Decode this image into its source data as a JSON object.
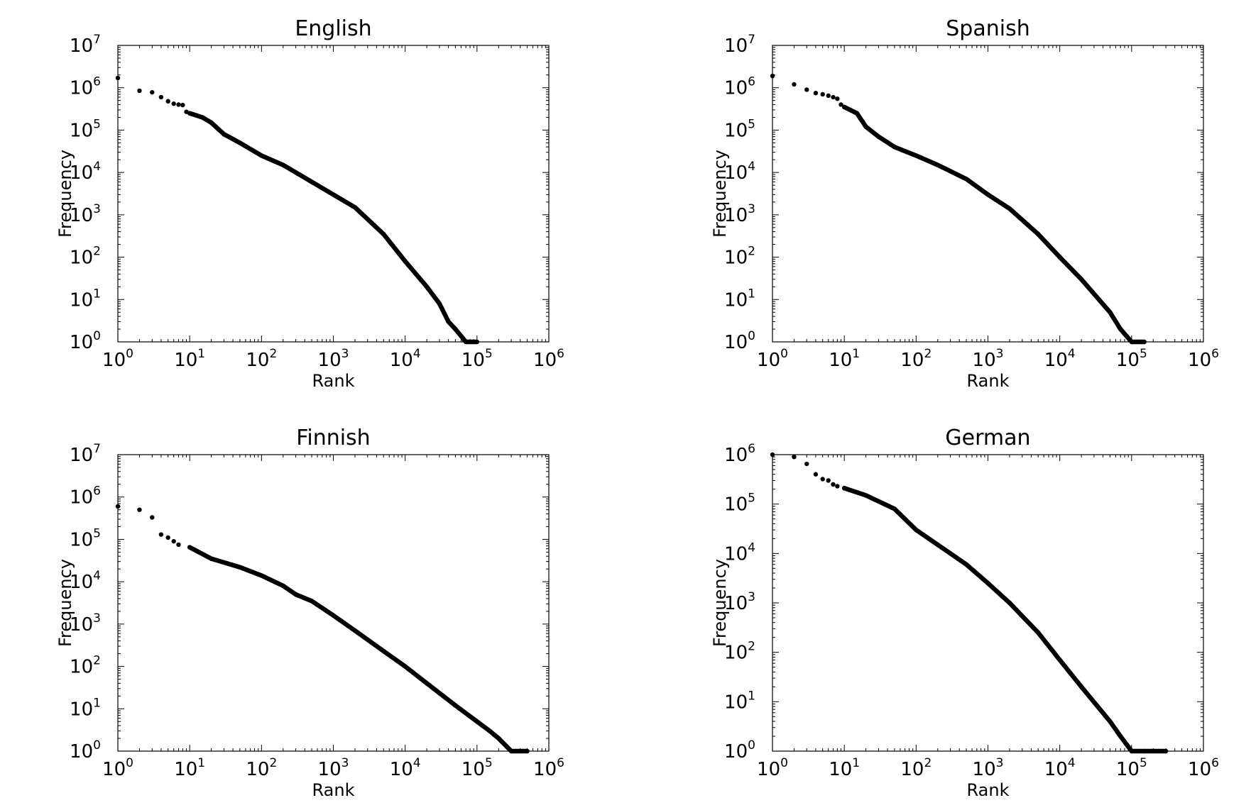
{
  "chart_data": [
    {
      "type": "scatter",
      "title": "English",
      "xlabel": "Rank",
      "ylabel": "Frequency",
      "x_scale": "log",
      "y_scale": "log",
      "xlim": [
        1,
        1000000
      ],
      "ylim": [
        1,
        10000000
      ],
      "x_ticks": [
        {
          "base": "10",
          "exp": "0"
        },
        {
          "base": "10",
          "exp": "1"
        },
        {
          "base": "10",
          "exp": "2"
        },
        {
          "base": "10",
          "exp": "3"
        },
        {
          "base": "10",
          "exp": "4"
        },
        {
          "base": "10",
          "exp": "5"
        },
        {
          "base": "10",
          "exp": "6"
        }
      ],
      "y_ticks": [
        {
          "base": "10",
          "exp": "0"
        },
        {
          "base": "10",
          "exp": "1"
        },
        {
          "base": "10",
          "exp": "2"
        },
        {
          "base": "10",
          "exp": "3"
        },
        {
          "base": "10",
          "exp": "4"
        },
        {
          "base": "10",
          "exp": "5"
        },
        {
          "base": "10",
          "exp": "6"
        },
        {
          "base": "10",
          "exp": "7"
        }
      ],
      "grid": false,
      "marker_color": "#000000",
      "x": [
        1,
        2,
        3,
        4,
        5,
        6,
        7,
        8,
        9,
        10,
        15,
        20,
        30,
        50,
        100,
        200,
        500,
        1000,
        2000,
        5000,
        10000,
        20000,
        30000,
        40000,
        50000,
        70000,
        100000
      ],
      "y": [
        1700000,
        850000,
        780000,
        600000,
        480000,
        420000,
        400000,
        390000,
        270000,
        250000,
        200000,
        150000,
        80000,
        50000,
        25000,
        15000,
        6000,
        3000,
        1500,
        350,
        80,
        20,
        8,
        3,
        2,
        1,
        1
      ]
    },
    {
      "type": "scatter",
      "title": "Spanish",
      "xlabel": "Rank",
      "ylabel": "Frequency",
      "x_scale": "log",
      "y_scale": "log",
      "xlim": [
        1,
        1000000
      ],
      "ylim": [
        1,
        10000000
      ],
      "x_ticks": [
        {
          "base": "10",
          "exp": "0"
        },
        {
          "base": "10",
          "exp": "1"
        },
        {
          "base": "10",
          "exp": "2"
        },
        {
          "base": "10",
          "exp": "3"
        },
        {
          "base": "10",
          "exp": "4"
        },
        {
          "base": "10",
          "exp": "5"
        },
        {
          "base": "10",
          "exp": "6"
        }
      ],
      "y_ticks": [
        {
          "base": "10",
          "exp": "0"
        },
        {
          "base": "10",
          "exp": "1"
        },
        {
          "base": "10",
          "exp": "2"
        },
        {
          "base": "10",
          "exp": "3"
        },
        {
          "base": "10",
          "exp": "4"
        },
        {
          "base": "10",
          "exp": "5"
        },
        {
          "base": "10",
          "exp": "6"
        },
        {
          "base": "10",
          "exp": "7"
        }
      ],
      "grid": false,
      "marker_color": "#000000",
      "x": [
        1,
        2,
        3,
        4,
        5,
        6,
        7,
        8,
        9,
        10,
        15,
        20,
        30,
        50,
        100,
        200,
        500,
        1000,
        2000,
        5000,
        10000,
        20000,
        50000,
        70000,
        100000,
        150000
      ],
      "y": [
        1900000,
        1200000,
        900000,
        750000,
        700000,
        650000,
        600000,
        550000,
        400000,
        350000,
        250000,
        120000,
        70000,
        40000,
        25000,
        15000,
        7000,
        3000,
        1400,
        350,
        100,
        30,
        5,
        2,
        1,
        1
      ]
    },
    {
      "type": "scatter",
      "title": "Finnish",
      "xlabel": "Rank",
      "ylabel": "Frequency",
      "x_scale": "log",
      "y_scale": "log",
      "xlim": [
        1,
        1000000
      ],
      "ylim": [
        1,
        10000000
      ],
      "x_ticks": [
        {
          "base": "10",
          "exp": "0"
        },
        {
          "base": "10",
          "exp": "1"
        },
        {
          "base": "10",
          "exp": "2"
        },
        {
          "base": "10",
          "exp": "3"
        },
        {
          "base": "10",
          "exp": "4"
        },
        {
          "base": "10",
          "exp": "5"
        },
        {
          "base": "10",
          "exp": "6"
        }
      ],
      "y_ticks": [
        {
          "base": "10",
          "exp": "0"
        },
        {
          "base": "10",
          "exp": "1"
        },
        {
          "base": "10",
          "exp": "2"
        },
        {
          "base": "10",
          "exp": "3"
        },
        {
          "base": "10",
          "exp": "4"
        },
        {
          "base": "10",
          "exp": "5"
        },
        {
          "base": "10",
          "exp": "6"
        },
        {
          "base": "10",
          "exp": "7"
        }
      ],
      "grid": false,
      "marker_color": "#000000",
      "x": [
        1,
        2,
        3,
        4,
        5,
        6,
        7,
        10,
        20,
        50,
        100,
        200,
        300,
        500,
        1000,
        2000,
        5000,
        10000,
        20000,
        50000,
        100000,
        150000,
        200000,
        300000,
        500000
      ],
      "y": [
        600000,
        500000,
        330000,
        130000,
        110000,
        90000,
        75000,
        65000,
        35000,
        22000,
        14000,
        8000,
        5000,
        3500,
        1600,
        700,
        230,
        100,
        40,
        12,
        5,
        3,
        2,
        1,
        1
      ]
    },
    {
      "type": "scatter",
      "title": "German",
      "xlabel": "Rank",
      "ylabel": "Frequency",
      "x_scale": "log",
      "y_scale": "log",
      "xlim": [
        1,
        1000000
      ],
      "ylim": [
        1,
        1000000
      ],
      "x_ticks": [
        {
          "base": "10",
          "exp": "0"
        },
        {
          "base": "10",
          "exp": "1"
        },
        {
          "base": "10",
          "exp": "2"
        },
        {
          "base": "10",
          "exp": "3"
        },
        {
          "base": "10",
          "exp": "4"
        },
        {
          "base": "10",
          "exp": "5"
        },
        {
          "base": "10",
          "exp": "6"
        }
      ],
      "y_ticks": [
        {
          "base": "10",
          "exp": "0"
        },
        {
          "base": "10",
          "exp": "1"
        },
        {
          "base": "10",
          "exp": "2"
        },
        {
          "base": "10",
          "exp": "3"
        },
        {
          "base": "10",
          "exp": "4"
        },
        {
          "base": "10",
          "exp": "5"
        },
        {
          "base": "10",
          "exp": "6"
        }
      ],
      "grid": false,
      "marker_color": "#000000",
      "x": [
        1,
        2,
        3,
        4,
        5,
        6,
        7,
        8,
        10,
        20,
        50,
        100,
        200,
        500,
        1000,
        2000,
        5000,
        10000,
        20000,
        50000,
        70000,
        100000,
        150000,
        300000
      ],
      "y": [
        1000000,
        900000,
        650000,
        400000,
        320000,
        300000,
        250000,
        230000,
        210000,
        150000,
        80000,
        30000,
        15000,
        6000,
        2500,
        1000,
        250,
        70,
        20,
        4,
        2,
        1,
        1,
        1
      ]
    }
  ]
}
